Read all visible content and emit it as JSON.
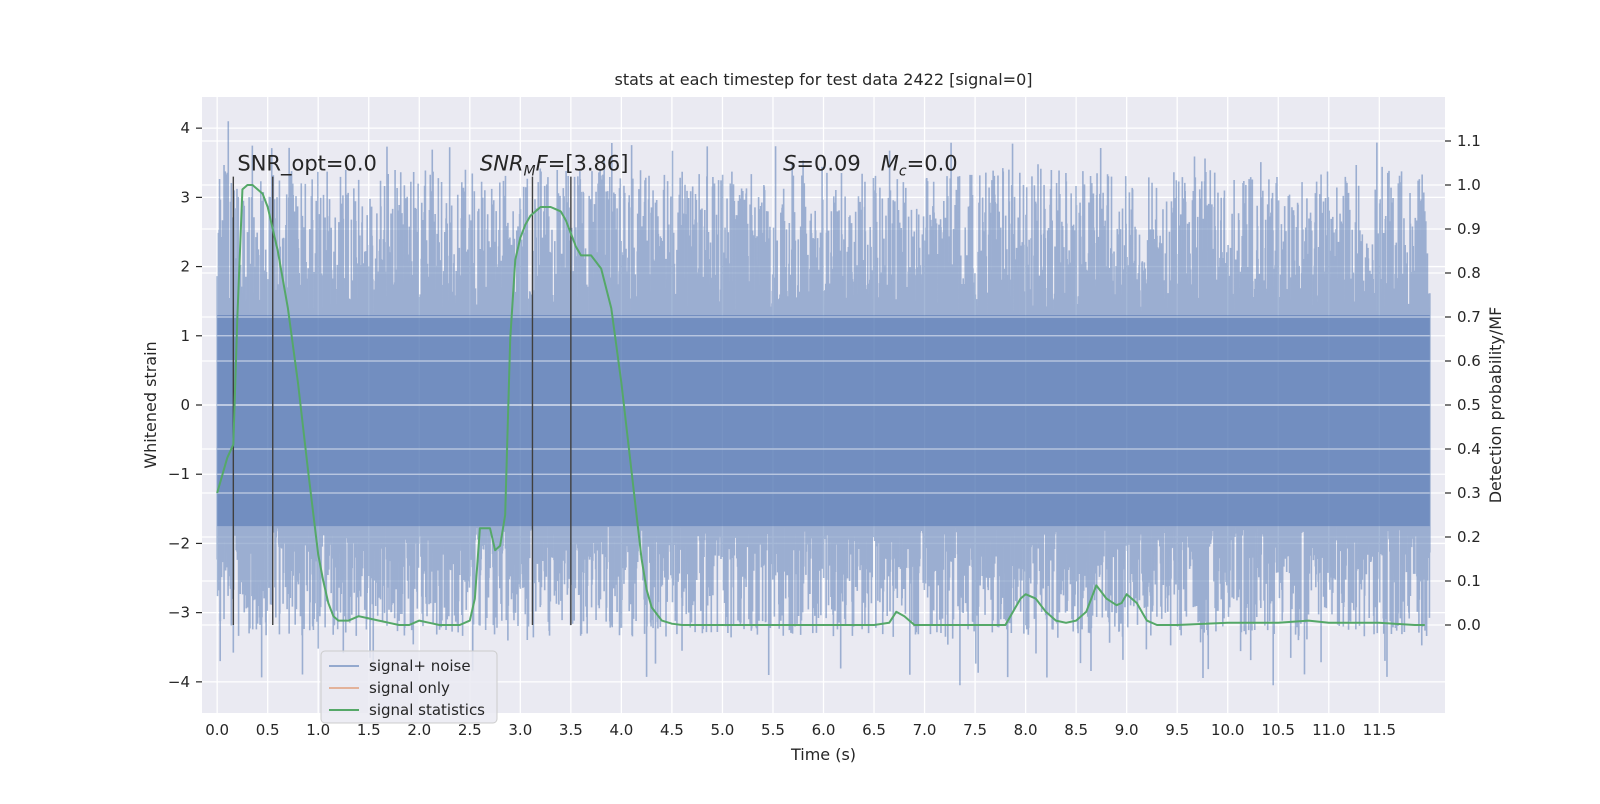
{
  "chart_data": {
    "type": "line",
    "title": "stats at each timestep for test data 2422 [signal=0]",
    "xlabel": "Time (s)",
    "ylabel": "Whitened strain",
    "y2label": "Detection probability/MF",
    "xlim": [
      -0.15,
      12.15
    ],
    "ylim": [
      -4.45,
      4.45
    ],
    "y2lim": [
      -0.2,
      1.2
    ],
    "x_ticks": [
      0.0,
      0.5,
      1.0,
      1.5,
      2.0,
      2.5,
      3.0,
      3.5,
      4.0,
      4.5,
      5.0,
      5.5,
      6.0,
      6.5,
      7.0,
      7.5,
      8.0,
      8.5,
      9.0,
      9.5,
      10.0,
      10.5,
      11.0,
      11.5
    ],
    "x_tick_labels": [
      "0.0",
      "0.5",
      "1.0",
      "1.5",
      "2.0",
      "2.5",
      "3.0",
      "3.5",
      "4.0",
      "4.5",
      "5.0",
      "5.5",
      "6.0",
      "6.5",
      "7.0",
      "7.5",
      "8.0",
      "8.5",
      "9.0",
      "9.5",
      "10.0",
      "10.5",
      "11.0",
      "11.5"
    ],
    "y_ticks": [
      4,
      3,
      2,
      1,
      0,
      -1,
      -2,
      -3,
      -4
    ],
    "y_tick_labels": [
      "4",
      "3",
      "2",
      "1",
      "0",
      "−1",
      "−2",
      "−3",
      "−4"
    ],
    "y2_ticks": [
      1.1,
      1.0,
      0.9,
      0.8,
      0.7,
      0.6,
      0.5,
      0.4,
      0.3,
      0.2,
      0.1,
      0.0
    ],
    "y2_tick_labels": [
      "1.1",
      "1.0",
      "0.9",
      "0.8",
      "0.7",
      "0.6",
      "0.5",
      "0.4",
      "0.3",
      "0.2",
      "0.1",
      "0.0"
    ],
    "grid": true,
    "legend_position": "lower-left",
    "colors": {
      "background": "#eaeaf2",
      "grid": "#ffffff",
      "noise": "#4c72b0",
      "signal": "#dd8452",
      "statistics": "#55a868",
      "markers": "#404040"
    },
    "series": [
      {
        "name": "signal+ noise",
        "axis": "left",
        "kind": "noise-band",
        "x_range": [
          0.0,
          12.0
        ],
        "core_range": [
          -1.75,
          1.3
        ],
        "extreme_min": -4.05,
        "extreme_max": 4.1,
        "notable_peaks": [
          [
            0.11,
            4.1
          ],
          [
            0.03,
            -3.7
          ],
          [
            7.35,
            -4.05
          ],
          [
            10.45,
            -4.05
          ],
          [
            4.6,
            -3.55
          ],
          [
            8.85,
            3.3
          ],
          [
            11.95,
            2.8
          ]
        ]
      },
      {
        "name": "signal only",
        "axis": "left",
        "x": [],
        "y": []
      },
      {
        "name": "signal statistics",
        "axis": "right",
        "x": [
          0.0,
          0.1,
          0.16,
          0.2,
          0.25,
          0.3,
          0.35,
          0.4,
          0.45,
          0.5,
          0.55,
          0.6,
          0.7,
          0.8,
          0.9,
          1.0,
          1.05,
          1.1,
          1.15,
          1.2,
          1.3,
          1.4,
          1.5,
          1.6,
          1.7,
          1.8,
          1.9,
          2.0,
          2.1,
          2.2,
          2.3,
          2.4,
          2.5,
          2.55,
          2.6,
          2.7,
          2.75,
          2.8,
          2.85,
          2.9,
          2.95,
          3.0,
          3.05,
          3.1,
          3.2,
          3.3,
          3.35,
          3.4,
          3.45,
          3.5,
          3.55,
          3.6,
          3.7,
          3.8,
          3.9,
          4.0,
          4.1,
          4.2,
          4.25,
          4.3,
          4.4,
          4.5,
          4.6,
          4.8,
          5.0,
          5.5,
          6.0,
          6.5,
          6.65,
          6.72,
          6.8,
          6.9,
          7.0,
          7.5,
          7.8,
          7.9,
          7.95,
          8.0,
          8.1,
          8.2,
          8.3,
          8.4,
          8.5,
          8.6,
          8.7,
          8.8,
          8.9,
          8.95,
          9.0,
          9.1,
          9.2,
          9.3,
          9.5,
          10.0,
          10.5,
          10.8,
          11.0,
          11.5,
          11.85,
          11.95
        ],
        "y": [
          0.3,
          0.38,
          0.41,
          0.7,
          0.99,
          1.0,
          1.0,
          0.99,
          0.98,
          0.95,
          0.9,
          0.85,
          0.72,
          0.55,
          0.35,
          0.16,
          0.1,
          0.05,
          0.02,
          0.01,
          0.01,
          0.02,
          0.015,
          0.01,
          0.005,
          0.0,
          0.0,
          0.01,
          0.005,
          0.0,
          0.0,
          0.0,
          0.01,
          0.06,
          0.22,
          0.22,
          0.17,
          0.18,
          0.25,
          0.65,
          0.83,
          0.88,
          0.91,
          0.93,
          0.95,
          0.95,
          0.945,
          0.94,
          0.92,
          0.89,
          0.86,
          0.84,
          0.84,
          0.81,
          0.72,
          0.55,
          0.35,
          0.15,
          0.08,
          0.04,
          0.01,
          0.003,
          0.0,
          0.0,
          0.0,
          0.0,
          0.0,
          0.0,
          0.005,
          0.03,
          0.02,
          0.0,
          0.0,
          0.0,
          0.0,
          0.04,
          0.06,
          0.07,
          0.06,
          0.03,
          0.01,
          0.005,
          0.01,
          0.03,
          0.09,
          0.06,
          0.045,
          0.05,
          0.07,
          0.05,
          0.01,
          0.0,
          0.0,
          0.005,
          0.005,
          0.01,
          0.005,
          0.005,
          0.0,
          0.0
        ]
      }
    ],
    "marker_lines": [
      0.16,
      0.55,
      3.12,
      3.5
    ],
    "marker_top": 3.3,
    "annotations": [
      {
        "id": "snr-opt",
        "x": 0.2,
        "y": 3.3,
        "parts": [
          {
            "t": "SNR_opt=0.0"
          }
        ]
      },
      {
        "id": "snr-mf",
        "x": 2.6,
        "y": 3.3,
        "parts": [
          {
            "t": "SNR",
            "i": true
          },
          {
            "t": "M",
            "i": true,
            "sub": true
          },
          {
            "t": "F",
            "i": true
          },
          {
            "t": "=[3.86]"
          }
        ]
      },
      {
        "id": "s-mc",
        "x": 5.6,
        "y": 3.3,
        "parts": [
          {
            "t": "S",
            "i": true
          },
          {
            "t": "=0.09   "
          },
          {
            "t": "M",
            "i": true
          },
          {
            "t": "c",
            "i": true,
            "sub": true
          },
          {
            "t": "=0.0"
          }
        ]
      }
    ],
    "legend": [
      {
        "label": "signal+ noise",
        "color": "#4c72b0",
        "opacity": 0.55
      },
      {
        "label": "signal only",
        "color": "#dd8452",
        "opacity": 0.55
      },
      {
        "label": "signal statistics",
        "color": "#55a868",
        "opacity": 1
      }
    ]
  }
}
